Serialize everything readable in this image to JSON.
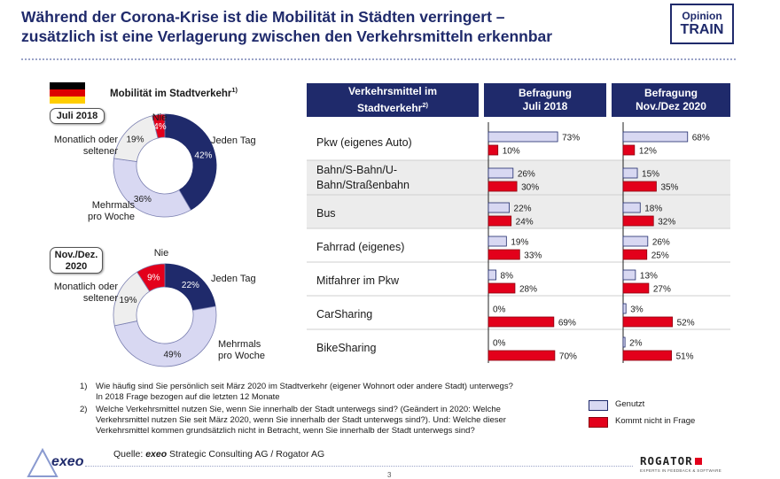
{
  "header": {
    "title_line1": "Während der Corona-Krise ist die Mobilität in Städten verringert –",
    "title_line2": "zusätzlich ist eine Verlagerung zwischen den Verkehrsmitteln erkennbar",
    "badge_line1": "Opinion",
    "badge_line2": "TRAIN"
  },
  "left": {
    "heading": "Mobilität im Stadtverkehr",
    "heading_sup": "1)"
  },
  "table": {
    "col1_header": "Verkehrsmittel im Stadtverkehr",
    "col1_sup": "2)",
    "col2_header_line1": "Befragung",
    "col2_header_line2": "Juli 2018",
    "col3_header_line1": "Befragung",
    "col3_header_line2": "Nov./Dez 2020",
    "rows": [
      {
        "label_lines": [
          "Pkw (eigenes Auto)"
        ]
      },
      {
        "label_lines": [
          "Bahn/S-Bahn/U-",
          "Bahn/Straßenbahn"
        ]
      },
      {
        "label_lines": [
          "Bus"
        ]
      },
      {
        "label_lines": [
          "Fahrrad (eigenes)"
        ]
      },
      {
        "label_lines": [
          "Mitfahrer im Pkw"
        ]
      },
      {
        "label_lines": [
          "CarSharing"
        ]
      },
      {
        "label_lines": [
          "BikeSharing"
        ]
      }
    ]
  },
  "footnotes": {
    "fn1_num": "1)",
    "fn1_line1": "Wie häufig sind Sie persönlich seit März 2020 im Stadtverkehr (eigener Wohnort oder andere Stadt) unterwegs?",
    "fn1_line2": "In 2018 Frage bezogen auf die letzten 12 Monate",
    "fn2_num": "2)",
    "fn2_line1": "Welche Verkehrsmittel nutzen Sie, wenn Sie innerhalb der Stadt unterwegs sind? (Geändert in 2020: Welche",
    "fn2_line2": "Verkehrsmittel nutzen Sie seit März 2020, wenn Sie innerhalb der Stadt unterwegs sind?). Und: Welche dieser",
    "fn2_line3": "Verkehrsmittel kommen grundsätzlich nicht in Betracht, wenn Sie innerhalb der Stadt unterwegs sind?"
  },
  "source": {
    "prefix": "Quelle: ",
    "brand": "exeo",
    "rest": " Strategic Consulting AG / Rogator AG"
  },
  "logos": {
    "exeo": "exeo",
    "rogator": "ROGATOR",
    "rogator_sub": "EXPERTS IN FEEDBACK & SOFTWARE"
  },
  "page_number": "3",
  "colors": {
    "navy": "#1f2a6b",
    "red": "#e3001b",
    "lavender": "#d8d8f2",
    "light_gray": "#eeeeee",
    "row_shade": "#ececec"
  },
  "chart_data": [
    {
      "type": "pie",
      "tag": "Juli 2018",
      "labels": [
        "Jeden Tag",
        "Mehrmals pro Woche",
        "Monatlich oder seltener",
        "Nie"
      ],
      "values": [
        42,
        36,
        19,
        4
      ],
      "value_labels": [
        "42%",
        "36%",
        "19%",
        "4%"
      ],
      "label_lines": [
        [
          "Jeden Tag"
        ],
        [
          "Mehrmals",
          "pro Woche"
        ],
        [
          "Monatlich oder",
          "seltener"
        ],
        [
          "Nie"
        ]
      ],
      "colors": [
        "#1f2a6b",
        "#d8d8f2",
        "#eeeeee",
        "#e3001b"
      ]
    },
    {
      "type": "pie",
      "tag": "Nov./Dez. 2020",
      "tag_lines": [
        "Nov./Dez.",
        "2020"
      ],
      "labels": [
        "Jeden Tag",
        "Mehrmals pro Woche",
        "Monatlich oder seltener",
        "Nie"
      ],
      "values": [
        22,
        49,
        19,
        9
      ],
      "value_labels": [
        "22%",
        "49%",
        "19%",
        "9%"
      ],
      "label_lines": [
        [
          "Jeden Tag"
        ],
        [
          "Mehrmals",
          "pro Woche"
        ],
        [
          "Monatlich oder",
          "seltener"
        ],
        [
          "Nie"
        ]
      ],
      "colors": [
        "#1f2a6b",
        "#d8d8f2",
        "#eeeeee",
        "#e3001b"
      ]
    },
    {
      "type": "bar",
      "orientation": "horizontal",
      "panel": "Befragung Juli 2018",
      "categories": [
        "Pkw (eigenes Auto)",
        "Bahn/S-Bahn/U-Bahn/Straßenbahn",
        "Bus",
        "Fahrrad (eigenes)",
        "Mitfahrer im Pkw",
        "CarSharing",
        "BikeSharing"
      ],
      "series": [
        {
          "name": "Genutzt",
          "values": [
            73,
            26,
            22,
            19,
            8,
            0,
            0
          ],
          "color": "#d8d8f2"
        },
        {
          "name": "Kommt nicht in Frage",
          "values": [
            10,
            30,
            24,
            33,
            28,
            69,
            70
          ],
          "color": "#e3001b"
        }
      ],
      "xlim": [
        0,
        100
      ]
    },
    {
      "type": "bar",
      "orientation": "horizontal",
      "panel": "Befragung Nov./Dez 2020",
      "categories": [
        "Pkw (eigenes Auto)",
        "Bahn/S-Bahn/U-Bahn/Straßenbahn",
        "Bus",
        "Fahrrad (eigenes)",
        "Mitfahrer im Pkw",
        "CarSharing",
        "BikeSharing"
      ],
      "series": [
        {
          "name": "Genutzt",
          "values": [
            68,
            15,
            18,
            26,
            13,
            3,
            2
          ],
          "color": "#d8d8f2"
        },
        {
          "name": "Kommt nicht in Frage",
          "values": [
            12,
            35,
            32,
            25,
            27,
            52,
            51
          ],
          "color": "#e3001b"
        }
      ],
      "xlim": [
        0,
        100
      ]
    }
  ]
}
